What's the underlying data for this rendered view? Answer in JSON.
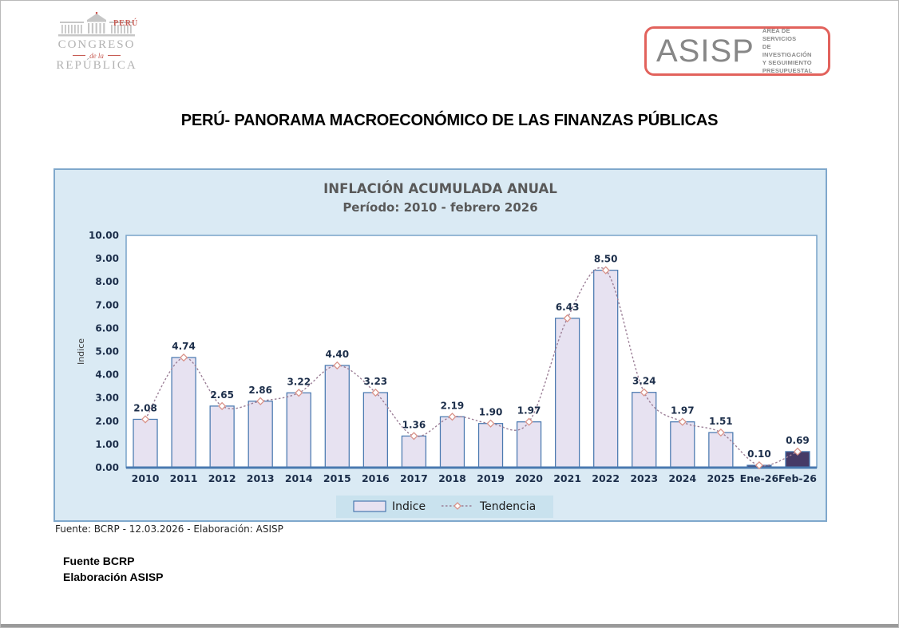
{
  "header": {
    "congress_logo": {
      "country": "PERÚ",
      "line1": "CONGRESO",
      "line2": "de la",
      "line3": "REPÚBLICA"
    },
    "asisp_logo": {
      "acronym": "ASISP",
      "subtitle_lines": [
        "ÁREA DE SERVICIOS",
        "DE INVESTIGACIÓN",
        "Y SEGUIMIENTO",
        "PRESUPUESTAL"
      ],
      "border_color": "#e2625c",
      "text_color": "#878787"
    }
  },
  "page_title": "PERÚ- PANORAMA MACROECONÓMICO DE LAS FINANZAS PÚBLICAS",
  "chart": {
    "title": "INFLACIÓN ACUMULADA ANUAL",
    "subtitle": "Período: 2010 - febrero 2026",
    "source_line": "Fuente: BCRP - 12.03.2026  - Elaboración: ASISP"
  },
  "chart_data": {
    "type": "bar",
    "title": "INFLACIÓN ACUMULADA ANUAL",
    "subtitle": "Período: 2010 - febrero 2026",
    "categories": [
      "2010",
      "2011",
      "2012",
      "2013",
      "2014",
      "2015",
      "2016",
      "2017",
      "2018",
      "2019",
      "2020",
      "2021",
      "2022",
      "2023",
      "2024",
      "2025",
      "Ene-26",
      "Feb-26"
    ],
    "series": [
      {
        "name": "Indice",
        "type": "bar",
        "values": [
          2.08,
          4.74,
          2.65,
          2.86,
          3.22,
          4.4,
          3.23,
          1.36,
          2.19,
          1.9,
          1.97,
          6.43,
          8.5,
          3.24,
          1.97,
          1.51,
          0.1,
          0.69
        ]
      },
      {
        "name": "Tendencia",
        "type": "line",
        "values": [
          2.08,
          4.74,
          2.65,
          2.86,
          3.22,
          4.4,
          3.23,
          1.36,
          2.19,
          1.9,
          1.97,
          6.43,
          8.5,
          3.24,
          1.97,
          1.51,
          0.1,
          0.69
        ]
      }
    ],
    "data_labels": [
      "2.08",
      "4.74",
      "2.65",
      "2.86",
      "3.22",
      "4.40",
      "3.23",
      "1.36",
      "2.19",
      "1.90",
      "1.97",
      "6.43",
      "8.50",
      "3.24",
      "1.97",
      "1.51",
      "0.10",
      "0.69"
    ],
    "xlabel": "",
    "ylabel": "Indice",
    "ylim": [
      0,
      10
    ],
    "ytick_step": 1,
    "grid": false,
    "legend_position": "bottom",
    "highlight_indices": [
      16,
      17
    ],
    "colors": {
      "bar_fill": "#e7e2f1",
      "bar_border": "#4a79b0",
      "bar_highlight_fill": "#463a66",
      "trend_line": "#9c7f97",
      "marker_fill": "#ffffff",
      "marker_stroke": "#d9938a",
      "plot_bg": "#ffffff",
      "plot_border": "#79a3c9",
      "chart_bg": "#daeaf4",
      "chart_border": "#7fa8cc",
      "axis_line": "#4a79b0",
      "label_color": "#1c2e4a",
      "title_color": "#595959",
      "legend_bg": "#c9e2ee",
      "legend_text": "#1a1a1a"
    }
  },
  "footer": {
    "line1": "Fuente BCRP",
    "line2": "Elaboración ASISP"
  }
}
